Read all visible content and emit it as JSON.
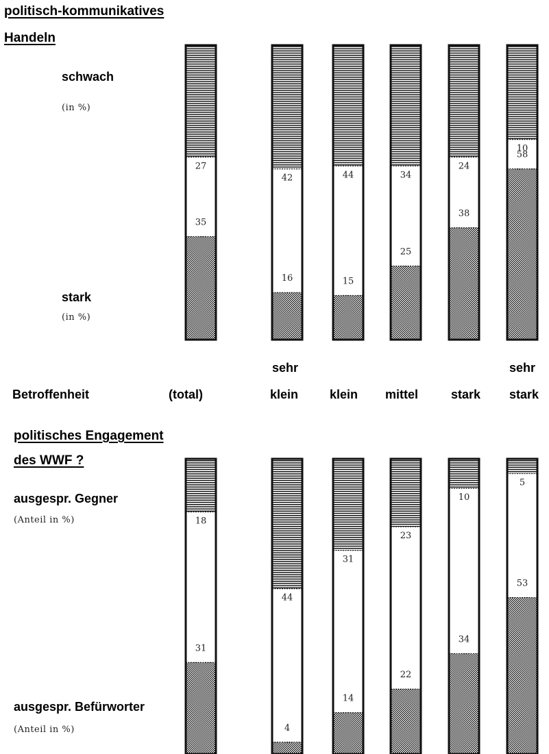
{
  "top": {
    "heading_line1": "politisch-kommunikatives",
    "heading_line2": "Handeln",
    "weak_label": "schwach",
    "weak_unit": "(in %)",
    "strong_label": "stark",
    "strong_unit": "(in %)"
  },
  "x_axis": {
    "title": "Betroffenheit",
    "categories": [
      "(total)",
      "sehr klein",
      "klein",
      "mittel",
      "stark",
      "sehr stark"
    ],
    "cat_line1": [
      "",
      "sehr",
      "",
      "",
      "",
      "sehr"
    ],
    "cat_line2": [
      "(total)",
      "klein",
      "klein",
      "mittel",
      "stark",
      "stark"
    ]
  },
  "bottom": {
    "heading_line1": "politisches Engagement",
    "heading_line2": "des  WWF ?",
    "against_label": "ausgespr. Gegner",
    "against_unit": "(Anteil in %)",
    "for_label": "ausgespr. Befürworter",
    "for_unit": "(Anteil in %)"
  },
  "colors": {
    "ink": "#111111",
    "paper": "#ffffff"
  },
  "chart_data": [
    {
      "type": "bar",
      "stacked": true,
      "title": "politisch-kommunikatives Handeln",
      "xlabel": "Betroffenheit",
      "categories": [
        "(total)",
        "sehr klein",
        "klein",
        "mittel",
        "stark",
        "sehr stark"
      ],
      "ylim": [
        0,
        100
      ],
      "series": [
        {
          "name": "stark",
          "pattern": "crosshatch",
          "values": [
            35,
            16,
            15,
            25,
            38,
            58
          ]
        },
        {
          "name": "",
          "pattern": "blank",
          "values": [
            27,
            42,
            44,
            34,
            24,
            10
          ]
        },
        {
          "name": "schwach",
          "pattern": "horizontal-lines",
          "values": [
            38,
            42,
            41,
            41,
            38,
            32
          ]
        }
      ],
      "data_labels": {
        "middle_top": [
          27,
          42,
          44,
          34,
          24,
          10
        ],
        "bottom": [
          35,
          16,
          15,
          25,
          38,
          58
        ]
      }
    },
    {
      "type": "bar",
      "stacked": true,
      "title": "politisches Engagement des WWF ?",
      "xlabel": "Betroffenheit",
      "categories": [
        "(total)",
        "sehr klein",
        "klein",
        "mittel",
        "stark",
        "sehr stark"
      ],
      "ylim": [
        0,
        100
      ],
      "series": [
        {
          "name": "ausgespr. Befürworter",
          "pattern": "crosshatch",
          "values": [
            31,
            4,
            14,
            22,
            34,
            53
          ]
        },
        {
          "name": "",
          "pattern": "blank",
          "values": [
            51,
            52,
            55,
            55,
            56,
            42
          ]
        },
        {
          "name": "ausgespr. Gegner",
          "pattern": "horizontal-lines",
          "values": [
            18,
            44,
            31,
            23,
            10,
            5
          ]
        }
      ],
      "data_labels": {
        "middle_top": [
          18,
          44,
          31,
          23,
          10,
          5
        ],
        "bottom": [
          31,
          4,
          14,
          22,
          34,
          53
        ]
      }
    }
  ]
}
